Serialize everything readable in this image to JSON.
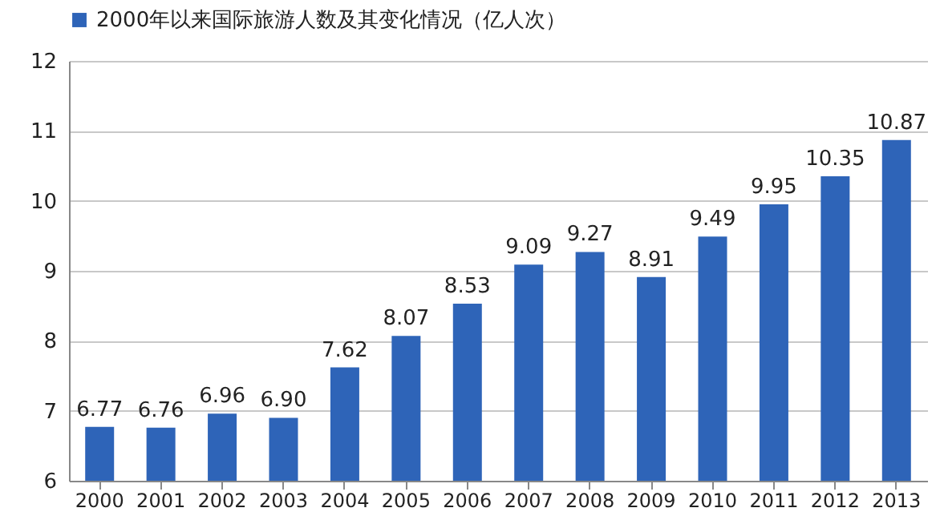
{
  "chart_data": {
    "type": "bar",
    "categories": [
      "2000",
      "2001",
      "2002",
      "2003",
      "2004",
      "2005",
      "2006",
      "2007",
      "2008",
      "2009",
      "2010",
      "2011",
      "2012",
      "2013"
    ],
    "series": [
      {
        "name": "2000年以来国际旅游人数及其变化情况（亿人次）",
        "color": "#2e64b8",
        "values": [
          6.77,
          6.76,
          6.96,
          6.9,
          7.62,
          8.07,
          8.53,
          9.09,
          9.27,
          8.91,
          9.49,
          9.95,
          10.35,
          10.87
        ]
      }
    ],
    "value_labels": [
      "6.77",
      "6.76",
      "6.96",
      "6.90",
      "7.62",
      "8.07",
      "8.53",
      "9.09",
      "9.27",
      "8.91",
      "9.49",
      "9.95",
      "10.35",
      "10.87"
    ],
    "ylim": [
      6,
      12
    ],
    "yticks": [
      6,
      7,
      8,
      9,
      10,
      11,
      12
    ],
    "grid": "y",
    "legend": "top"
  }
}
